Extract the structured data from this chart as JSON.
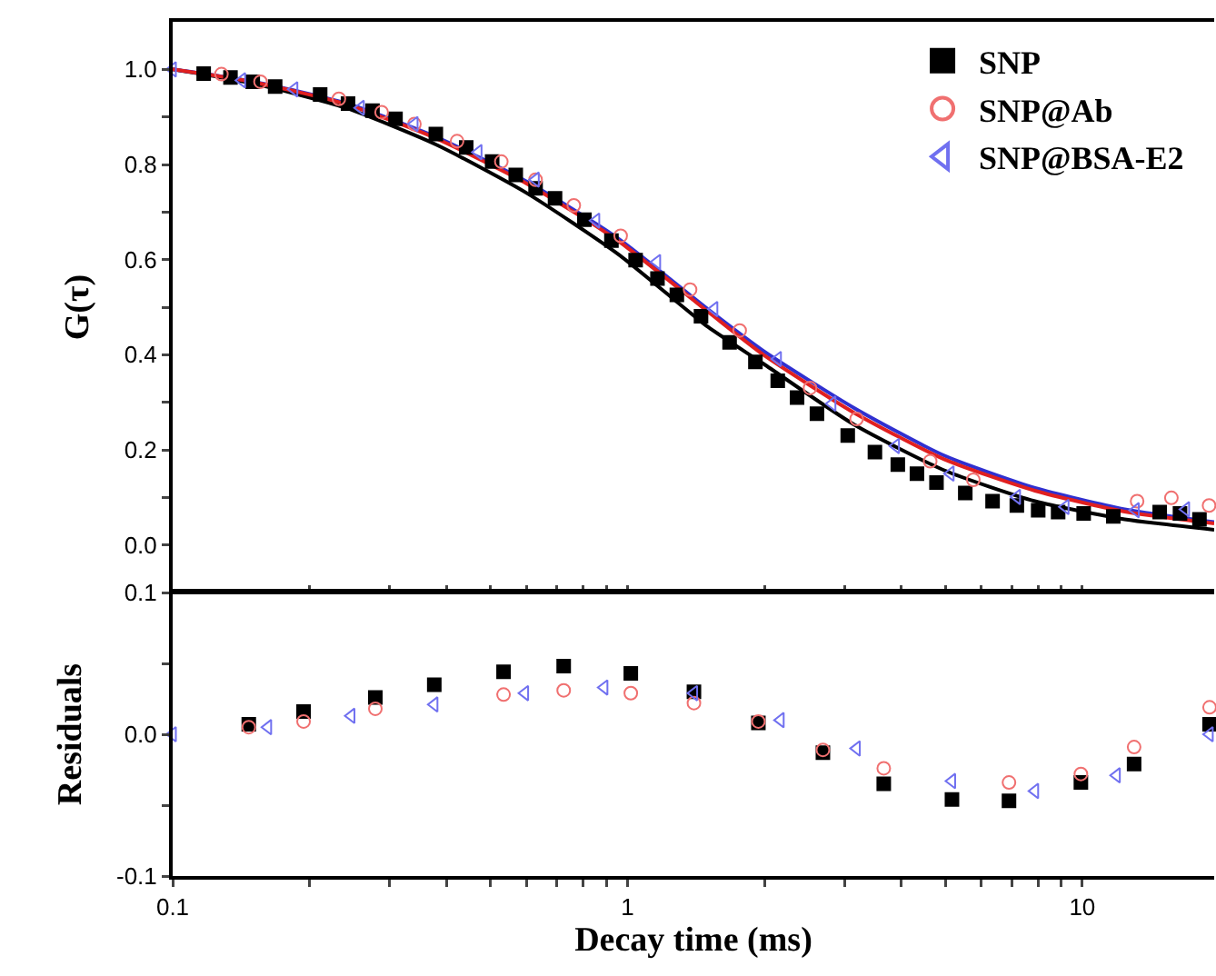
{
  "chart_data": [
    {
      "type": "scatter",
      "ylabel": "G(τ)",
      "log": "x",
      "legend": "top right",
      "tick_labels": "y",
      "xlim": [
        0.1,
        19.5
      ],
      "ylim": [
        -0.1,
        1.1
      ],
      "xticks": [
        {
          "value": 0.1,
          "label": null
        },
        {
          "value": 0.2,
          "label": null
        },
        {
          "value": 0.3,
          "label": null
        },
        {
          "value": 0.4,
          "label": null
        },
        {
          "value": 0.5,
          "label": null
        },
        {
          "value": 0.6,
          "label": null
        },
        {
          "value": 0.7,
          "label": null
        },
        {
          "value": 0.8,
          "label": null
        },
        {
          "value": 0.9,
          "label": null
        },
        {
          "value": 1,
          "label": null
        },
        {
          "value": 2,
          "label": null
        },
        {
          "value": 3,
          "label": null
        },
        {
          "value": 4,
          "label": null
        },
        {
          "value": 5,
          "label": null
        },
        {
          "value": 6,
          "label": null
        },
        {
          "value": 7,
          "label": null
        },
        {
          "value": 8,
          "label": null
        },
        {
          "value": 9,
          "label": null
        },
        {
          "value": 10,
          "label": null
        }
      ],
      "yticks": [
        {
          "value": 0,
          "label": "0.0"
        },
        {
          "value": 0.1,
          "label": null
        },
        {
          "value": 0.2,
          "label": "0.2"
        },
        {
          "value": 0.3,
          "label": null
        },
        {
          "value": 0.4,
          "label": "0.4"
        },
        {
          "value": 0.5,
          "label": null
        },
        {
          "value": 0.6,
          "label": "0.6"
        },
        {
          "value": 0.7,
          "label": null
        },
        {
          "value": 0.8,
          "label": "0.8"
        },
        {
          "value": 0.9,
          "label": null
        },
        {
          "value": 1,
          "label": "1.0"
        }
      ],
      "series": [
        {
          "name": "SNP",
          "color": "#000000",
          "marker": "square",
          "x": [
            0.117,
            0.134,
            0.15,
            0.168,
            0.211,
            0.243,
            0.275,
            0.309,
            0.379,
            0.442,
            0.504,
            0.568,
            0.628,
            0.693,
            0.804,
            0.922,
            1.042,
            1.164,
            1.284,
            1.451,
            1.677,
            1.911,
            2.14,
            2.36,
            2.61,
            3.05,
            3.5,
            3.93,
            4.33,
            4.78,
            5.53,
            6.35,
            7.18,
            8.0,
            8.85,
            10.07,
            11.7,
            14.8,
            16.4,
            18.1
          ],
          "values": [
            0.991,
            0.983,
            0.974,
            0.964,
            0.947,
            0.928,
            0.913,
            0.896,
            0.864,
            0.836,
            0.806,
            0.778,
            0.75,
            0.729,
            0.684,
            0.64,
            0.599,
            0.56,
            0.526,
            0.481,
            0.426,
            0.385,
            0.345,
            0.31,
            0.276,
            0.23,
            0.195,
            0.169,
            0.15,
            0.131,
            0.109,
            0.092,
            0.083,
            0.073,
            0.069,
            0.066,
            0.06,
            0.069,
            0.066,
            0.054
          ]
        },
        {
          "name": "SNP@Ab",
          "color": "#f07070",
          "marker": "circle",
          "x": [
            0.128,
            0.156,
            0.232,
            0.288,
            0.34,
            0.422,
            0.528,
            0.628,
            0.762,
            0.966,
            1.373,
            1.765,
            2.52,
            3.19,
            4.63,
            5.76,
            13.2,
            15.7,
            19.0
          ],
          "values": [
            0.99,
            0.974,
            0.938,
            0.91,
            0.885,
            0.849,
            0.806,
            0.768,
            0.714,
            0.65,
            0.537,
            0.451,
            0.33,
            0.265,
            0.176,
            0.137,
            0.092,
            0.099,
            0.083
          ]
        },
        {
          "name": "SNP@BSA-E2",
          "color": "#7070f0",
          "marker": "triangle",
          "x": [
            0.1,
            0.142,
            0.185,
            0.259,
            0.34,
            0.47,
            0.628,
            0.853,
            1.161,
            1.551,
            2.14,
            2.82,
            3.89,
            5.13,
            7.18,
            9.18,
            13.1,
            16.9
          ],
          "values": [
            1.0,
            0.977,
            0.958,
            0.919,
            0.885,
            0.826,
            0.768,
            0.682,
            0.595,
            0.496,
            0.391,
            0.297,
            0.208,
            0.15,
            0.101,
            0.08,
            0.073,
            0.075
          ]
        },
        {
          "type": "line",
          "color": "#000000",
          "x": [
            0.1,
            0.151,
            0.24,
            0.379,
            0.6,
            0.952,
            1.505,
            1.99,
            3.15,
            4.97,
            7.87,
            12.4,
            19.5
          ],
          "values": [
            1.0,
            0.97,
            0.919,
            0.842,
            0.74,
            0.612,
            0.458,
            0.381,
            0.253,
            0.157,
            0.092,
            0.054,
            0.032
          ]
        },
        {
          "type": "line",
          "color": "#3030d0",
          "x": [
            0.1,
            0.151,
            0.24,
            0.379,
            0.6,
            0.952,
            1.505,
            1.99,
            3.15,
            4.97,
            7.87,
            12.4,
            19.5
          ],
          "values": [
            1.0,
            0.974,
            0.929,
            0.858,
            0.764,
            0.645,
            0.495,
            0.408,
            0.288,
            0.188,
            0.12,
            0.075,
            0.048
          ]
        },
        {
          "type": "line",
          "color": "#e02020",
          "x": [
            0.1,
            0.151,
            0.24,
            0.379,
            0.6,
            0.952,
            1.505,
            1.99,
            3.15,
            4.97,
            7.87,
            12.4,
            19.5
          ],
          "values": [
            1.0,
            0.973,
            0.927,
            0.855,
            0.76,
            0.64,
            0.49,
            0.4,
            0.278,
            0.18,
            0.114,
            0.07,
            0.045
          ]
        }
      ]
    },
    {
      "type": "scatter",
      "ylabel": "Residuals",
      "xlabel": "Decay time (ms)",
      "log": "x",
      "xlim": [
        0.1,
        19.5
      ],
      "ylim": [
        -0.1,
        0.1
      ],
      "xticks": [
        0.1,
        {
          "value": 0.2,
          "label": null
        },
        {
          "value": 0.3,
          "label": null
        },
        {
          "value": 0.4,
          "label": null
        },
        {
          "value": 0.5,
          "label": null
        },
        {
          "value": 0.6,
          "label": null
        },
        {
          "value": 0.7,
          "label": null
        },
        {
          "value": 0.8,
          "label": null
        },
        {
          "value": 0.9,
          "label": null
        },
        1,
        {
          "value": 2,
          "label": null
        },
        {
          "value": 3,
          "label": null
        },
        {
          "value": 4,
          "label": null
        },
        {
          "value": 5,
          "label": null
        },
        {
          "value": 6,
          "label": null
        },
        {
          "value": 7,
          "label": null
        },
        {
          "value": 8,
          "label": null
        },
        {
          "value": 9,
          "label": null
        },
        10
      ],
      "yticks": [
        -0.1,
        {
          "value": -0.05,
          "label": null
        },
        {
          "value": 0,
          "label": "0.0"
        },
        {
          "value": 0.05,
          "label": null
        },
        0.1
      ],
      "series": [
        {
          "color": "#000000",
          "marker": "square",
          "x": [
            0.147,
            0.194,
            0.279,
            0.376,
            0.534,
            0.724,
            1.017,
            1.4,
            1.94,
            2.69,
            3.66,
            5.17,
            6.9,
            9.93,
            13.0,
            19.05
          ],
          "values": [
            0.007,
            0.016,
            0.026,
            0.035,
            0.044,
            0.048,
            0.043,
            0.03,
            0.008,
            -0.013,
            -0.035,
            -0.046,
            -0.047,
            -0.034,
            -0.021,
            0.007
          ]
        },
        {
          "color": "#f07070",
          "marker": "circle",
          "x": [
            0.147,
            0.194,
            0.279,
            0.534,
            0.724,
            1.017,
            1.4,
            1.94,
            2.69,
            3.66,
            6.9,
            9.93,
            13.0,
            19.05
          ],
          "values": [
            0.005,
            0.009,
            0.018,
            0.028,
            0.031,
            0.029,
            0.022,
            0.009,
            -0.011,
            -0.024,
            -0.034,
            -0.028,
            -0.009,
            0.019
          ]
        },
        {
          "color": "#7070f0",
          "marker": "triangle",
          "x": [
            0.1,
            0.162,
            0.247,
            0.376,
            0.595,
            0.889,
            1.4,
            2.17,
            3.19,
            5.17,
            7.87,
            11.9,
            19.05
          ],
          "values": [
            0.0,
            0.005,
            0.013,
            0.021,
            0.029,
            0.033,
            0.029,
            0.01,
            -0.01,
            -0.033,
            -0.04,
            -0.029,
            0.0
          ]
        }
      ]
    }
  ]
}
